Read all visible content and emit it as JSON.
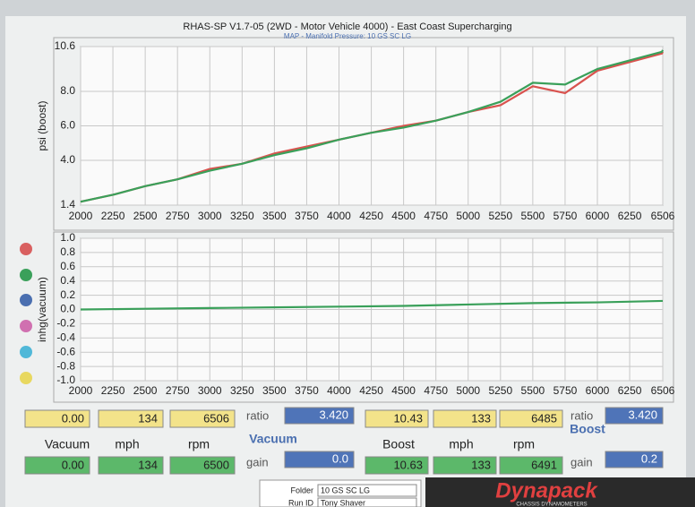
{
  "chart_data": [
    {
      "type": "line",
      "title": "RHAS-SP V1.7-05  (2WD - Motor Vehicle 4000) - East Coast Supercharging",
      "subtitle": "MAP - Manifold Pressure: 10 GS SC LG",
      "y_label": "psi (boost)",
      "x": [
        2000,
        2250,
        2500,
        2750,
        3000,
        3250,
        3500,
        3750,
        4000,
        4250,
        4500,
        4750,
        5000,
        5250,
        5500,
        5750,
        6000,
        6250,
        6500,
        6506
      ],
      "series": [
        {
          "color": "#d9534f",
          "values": [
            1.6,
            2.0,
            2.5,
            2.9,
            3.5,
            3.8,
            4.4,
            4.8,
            5.2,
            5.6,
            6.0,
            6.3,
            6.8,
            7.2,
            8.3,
            7.9,
            9.2,
            9.7,
            10.2,
            10.3
          ]
        },
        {
          "color": "#3aa05a",
          "values": [
            1.6,
            2.0,
            2.5,
            2.9,
            3.4,
            3.8,
            4.3,
            4.7,
            5.2,
            5.6,
            5.9,
            6.3,
            6.8,
            7.4,
            8.5,
            8.4,
            9.3,
            9.8,
            10.3,
            10.4
          ]
        }
      ],
      "xlim": [
        2000,
        6506
      ],
      "xticks": [
        2000,
        2250,
        2500,
        2750,
        3000,
        3250,
        3500,
        3750,
        4000,
        4250,
        4500,
        4750,
        5000,
        5250,
        5500,
        5750,
        6000,
        6250,
        6506
      ],
      "ylim": [
        1.4,
        10.6
      ],
      "yticks": [
        1.4,
        {
          "value": 4,
          "label": "4.0"
        },
        {
          "value": 6,
          "label": "6.0"
        },
        {
          "value": 8,
          "label": "8.0"
        },
        10.6
      ],
      "grid": true
    },
    {
      "type": "line",
      "y_label": "inhg(vacuum)",
      "x": [
        2000,
        2500,
        3000,
        3500,
        4000,
        4500,
        5000,
        5500,
        6000,
        6506
      ],
      "series": [
        {
          "color": "#3aa05a",
          "values": [
            0.0,
            0.01,
            0.02,
            0.03,
            0.04,
            0.05,
            0.07,
            0.09,
            0.1,
            0.12
          ]
        }
      ],
      "xlim": [
        2000,
        6506
      ],
      "xticks": [
        2000,
        2250,
        2500,
        2750,
        3000,
        3250,
        3500,
        3750,
        4000,
        4250,
        4500,
        4750,
        5000,
        5250,
        5500,
        5750,
        6000,
        6250,
        6506
      ],
      "ylim": [
        -1,
        1
      ],
      "yticks": [
        {
          "value": -1,
          "label": "-1.0"
        },
        -0.8,
        -0.6,
        -0.4,
        -0.2,
        {
          "value": 0,
          "label": "0.0"
        },
        0.2,
        0.4,
        0.6,
        0.8,
        {
          "value": 1,
          "label": "1.0"
        }
      ],
      "grid": true
    }
  ],
  "panel": {
    "groups": [
      {
        "top": [
          "0.00",
          "134",
          "6506"
        ],
        "labels": [
          "Vacuum",
          "mph",
          "rpm"
        ],
        "bottom": [
          "0.00",
          "134",
          "6500"
        ],
        "mode": "Vacuum",
        "ratio_label": "ratio",
        "ratio": "3.420",
        "gain_label": "gain",
        "gain": "0.0"
      },
      {
        "top": [
          "10.43",
          "133",
          "6485"
        ],
        "labels": [
          "Boost",
          "mph",
          "rpm"
        ],
        "bottom": [
          "10.63",
          "133",
          "6491"
        ],
        "mode": "Boost",
        "ratio_label": "ratio",
        "ratio": "3.420",
        "gain_label": "gain",
        "gain": "0.2"
      }
    ]
  },
  "footer": {
    "folder_label": "Folder",
    "folder": "10 GS SC LG",
    "run_label": "Run ID",
    "run": "Tony Shaver",
    "brand": "Dynapack",
    "brand_sub": "CHASSIS DYNAMOMETERS"
  }
}
